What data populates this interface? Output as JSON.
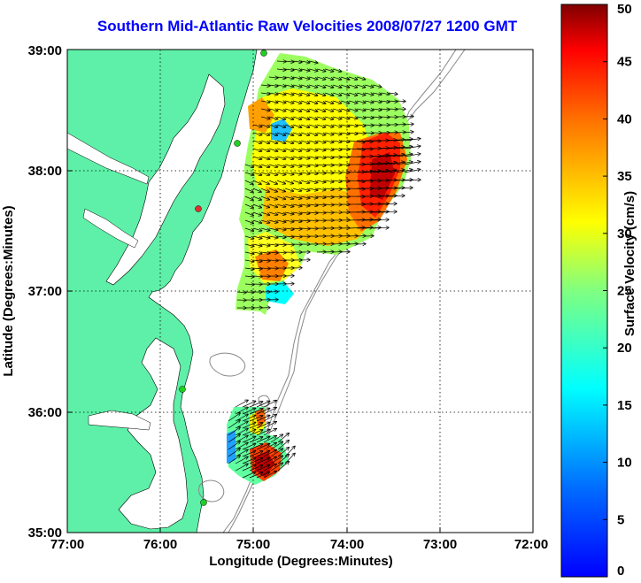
{
  "title": "Southern Mid-Atlantic Raw Velocities 2008/07/27 1200 GMT",
  "map": {
    "xlabel": "Longitude (Degrees:Minutes)",
    "ylabel": "Latitude (Degrees:Minutes)",
    "x_ticks": [
      "77:00",
      "76:00",
      "75:00",
      "74:00",
      "73:00",
      "72:00"
    ],
    "y_ticks": [
      "35:00",
      "36:00",
      "37:00",
      "38:00",
      "39:00"
    ],
    "x_range_deg": [
      -77,
      -72
    ],
    "y_range_deg": [
      35,
      39
    ],
    "land_color": "#5ef0a8",
    "grid": "dotted"
  },
  "colorbar": {
    "label": "Surface Velocity (cm/s)",
    "ticks": [
      "0",
      "5",
      "10",
      "15",
      "20",
      "25",
      "30",
      "35",
      "40",
      "45",
      "50"
    ],
    "range": [
      0,
      50
    ],
    "colormap": "jet"
  }
}
